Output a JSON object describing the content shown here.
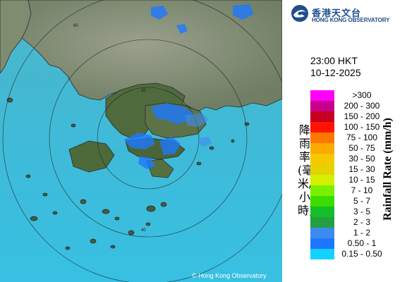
{
  "header": {
    "org_name_cn": "香港天文台",
    "org_name_en": "HONG KONG OBSERVATORY",
    "logo_icon": "hko-logo-icon"
  },
  "timestamp": {
    "time": "23:00 HKT",
    "date": "10-12-2025"
  },
  "legend": {
    "axis_label_en": "Rainfall Rate (mm/h)",
    "axis_label_cn": "降雨率(毫米/小時)",
    "bins": [
      {
        "label": ">300",
        "color": "#ff00ff"
      },
      {
        "label": "200 - 300",
        "color": "#c8008c"
      },
      {
        "label": "150 - 200",
        "color": "#c80023"
      },
      {
        "label": "100 - 150",
        "color": "#ff1400"
      },
      {
        "label": "75 - 100",
        "color": "#fa7800"
      },
      {
        "label": "50 - 75",
        "color": "#faaa00"
      },
      {
        "label": "30 - 50",
        "color": "#f5c800"
      },
      {
        "label": "15 - 30",
        "color": "#e6d200"
      },
      {
        "label": "10 - 15",
        "color": "#d2f000"
      },
      {
        "label": "7 - 10",
        "color": "#78f000"
      },
      {
        "label": "5 - 7",
        "color": "#3cdc00"
      },
      {
        "label": "3 - 5",
        "color": "#14be28"
      },
      {
        "label": "2 - 3",
        "color": "#23a041"
      },
      {
        "label": "1 - 2",
        "color": "#3c8cf0"
      },
      {
        "label": "0.50 - 1",
        "color": "#1e78ff"
      },
      {
        "label": "0.15 - 0.50",
        "color": "#14d2ff"
      }
    ]
  },
  "map": {
    "range_ring_labels": [
      "20",
      "40",
      "60"
    ],
    "copyright": "© Hong Kong Observatory",
    "sea_color": "#3ab8d4",
    "land_color": "#7c8a6e"
  }
}
